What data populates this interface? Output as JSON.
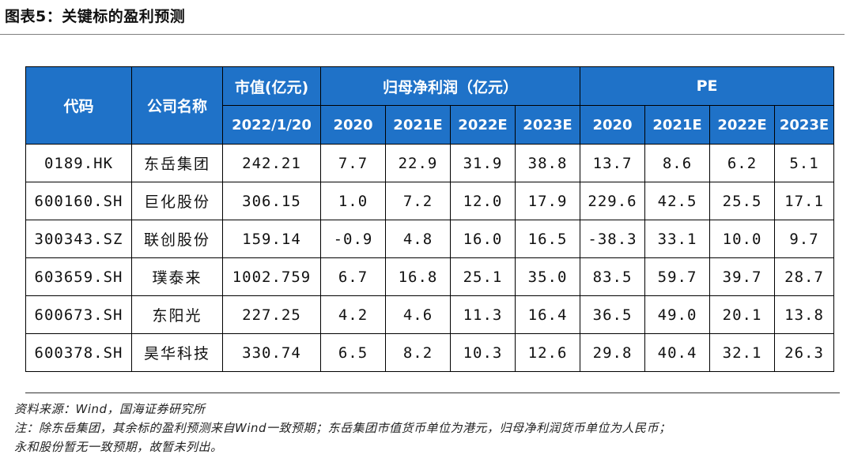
{
  "title": "图表5：关键标的盈利预测",
  "table": {
    "header": {
      "code": "代码",
      "company": "公司名称",
      "market_cap": "市值(亿元)",
      "market_cap_date": "2022/1/20",
      "net_profit": "归母净利润（亿元）",
      "pe": "PE",
      "years": [
        "2020",
        "2021E",
        "2022E",
        "2023E"
      ]
    },
    "rows": [
      {
        "code": "0189.HK",
        "name": "东岳集团",
        "cap": "242.21",
        "np": [
          "7.7",
          "22.9",
          "31.9",
          "38.8"
        ],
        "pe": [
          "13.7",
          "8.6",
          "6.2",
          "5.1"
        ]
      },
      {
        "code": "600160.SH",
        "name": "巨化股份",
        "cap": "306.15",
        "np": [
          "1.0",
          "7.2",
          "12.0",
          "17.9"
        ],
        "pe": [
          "229.6",
          "42.5",
          "25.5",
          "17.1"
        ]
      },
      {
        "code": "300343.SZ",
        "name": "联创股份",
        "cap": "159.14",
        "np": [
          "-0.9",
          "4.8",
          "16.0",
          "16.5"
        ],
        "pe": [
          "-38.3",
          "33.1",
          "10.0",
          "9.7"
        ]
      },
      {
        "code": "603659.SH",
        "name": "璞泰来",
        "cap": "1002.759",
        "np": [
          "6.7",
          "16.8",
          "25.1",
          "35.0"
        ],
        "pe": [
          "83.5",
          "59.7",
          "39.7",
          "28.7"
        ]
      },
      {
        "code": "600673.SH",
        "name": "东阳光",
        "cap": "227.25",
        "np": [
          "4.2",
          "4.6",
          "11.3",
          "16.4"
        ],
        "pe": [
          "36.5",
          "49.0",
          "20.1",
          "13.8"
        ]
      },
      {
        "code": "600378.SH",
        "name": "昊华科技",
        "cap": "330.74",
        "np": [
          "6.5",
          "8.2",
          "10.3",
          "12.6"
        ],
        "pe": [
          "29.8",
          "40.4",
          "32.1",
          "26.3"
        ]
      }
    ]
  },
  "notes": {
    "source": "资料来源：Wind，国海证券研究所",
    "note_line1": "注：除东岳集团，其余标的盈利预测来自Wind一致预期；东岳集团市值货币单位为港元，归母净利润货币单位为人民币；",
    "note_line2": "永和股份暂无一致预期，故暂未列出。"
  }
}
